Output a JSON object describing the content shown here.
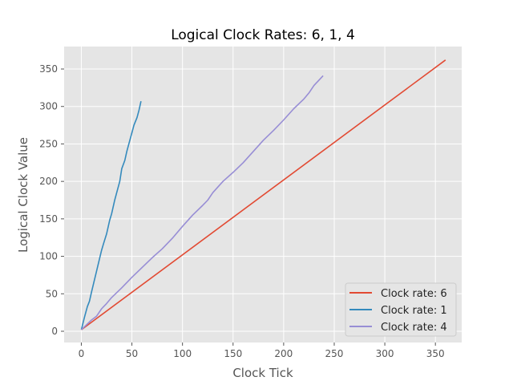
{
  "chart_data": {
    "type": "line",
    "title": "Logical Clock Rates: 6, 1, 4",
    "xlabel": "Clock Tick",
    "ylabel": "Logical Clock Value",
    "xlim": [
      -17,
      376
    ],
    "ylim": [
      -15,
      380
    ],
    "xticks": [
      0,
      50,
      100,
      150,
      200,
      250,
      300,
      350
    ],
    "yticks": [
      0,
      50,
      100,
      150,
      200,
      250,
      300,
      350
    ],
    "grid": true,
    "legend_position": "lower-right",
    "series": [
      {
        "name": "Clock rate: 6",
        "color": "#E24A33",
        "x": [
          0,
          360
        ],
        "y": [
          2,
          362
        ]
      },
      {
        "name": "Clock rate: 1",
        "color": "#348ABD",
        "x": [
          0,
          3,
          6,
          8,
          10,
          12,
          15,
          18,
          20,
          22,
          25,
          28,
          30,
          33,
          35,
          38,
          40,
          43,
          45,
          48,
          50,
          52,
          55,
          57,
          59
        ],
        "y": [
          2,
          18,
          33,
          40,
          52,
          63,
          80,
          97,
          108,
          117,
          130,
          148,
          157,
          175,
          185,
          200,
          217,
          228,
          240,
          255,
          265,
          275,
          285,
          295,
          307
        ]
      },
      {
        "name": "Clock rate: 4",
        "color": "#988ED5",
        "x": [
          0,
          10,
          15,
          20,
          25,
          30,
          40,
          50,
          60,
          70,
          80,
          90,
          100,
          110,
          120,
          125,
          130,
          140,
          150,
          160,
          170,
          180,
          190,
          200,
          210,
          220,
          225,
          230,
          239
        ],
        "y": [
          2,
          15,
          20,
          30,
          37,
          45,
          58,
          72,
          85,
          98,
          110,
          124,
          140,
          155,
          168,
          175,
          185,
          200,
          212,
          225,
          240,
          255,
          268,
          282,
          297,
          310,
          318,
          328,
          341
        ]
      }
    ]
  }
}
